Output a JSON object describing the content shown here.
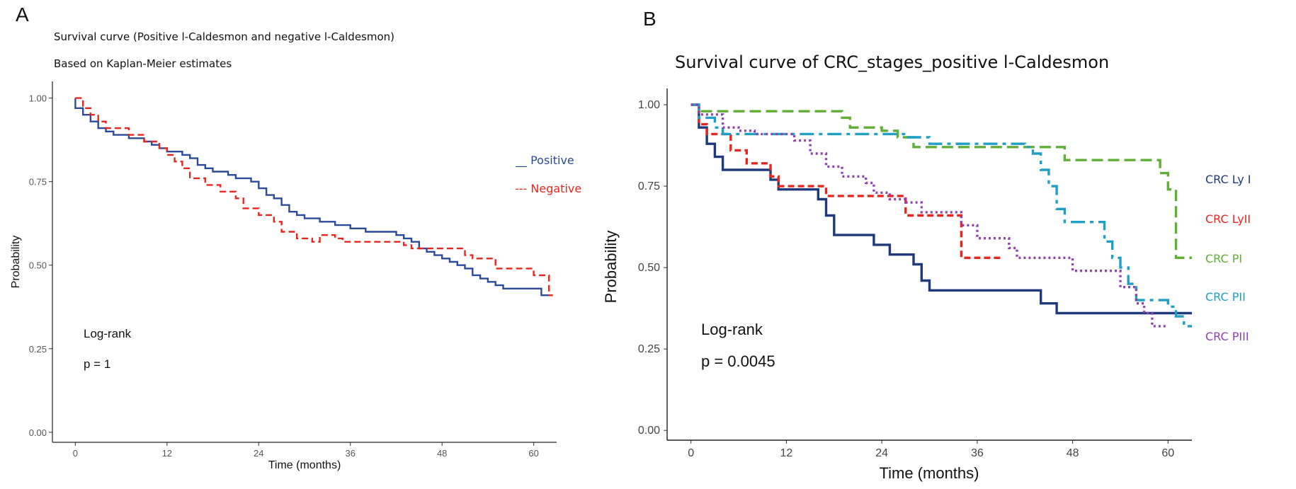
{
  "panels": {
    "a": {
      "letter": "A"
    },
    "b": {
      "letter": "B"
    }
  },
  "chart_data": [
    {
      "type": "line",
      "title": "Survival curve (Positive l-Caldesmon and negative l-Caldesmon)",
      "subtitle": "Based on Kaplan-Meier estimates",
      "xlabel": "Time (months)",
      "ylabel": "Probability",
      "xlim": [
        -3,
        63
      ],
      "ylim": [
        -0.03,
        1.05
      ],
      "xticks": [
        0,
        12,
        24,
        36,
        48,
        60
      ],
      "yticks": [
        0.0,
        0.25,
        0.5,
        0.75,
        1.0
      ],
      "ytick_labels": [
        "0.00",
        "0.25",
        "0.50",
        "0.75",
        "1.00"
      ],
      "grid": false,
      "legend_position": "right",
      "annotations": {
        "test": "Log-rank",
        "pvalue": "p = 1"
      },
      "series": [
        {
          "name": "Positive",
          "legend_label": "__ Positive",
          "color": "#2b4a9a",
          "dash": "solid",
          "steps": [
            [
              0,
              1.0
            ],
            [
              0,
              0.97
            ],
            [
              1,
              0.95
            ],
            [
              2,
              0.93
            ],
            [
              3,
              0.91
            ],
            [
              4,
              0.9
            ],
            [
              5,
              0.89
            ],
            [
              7,
              0.88
            ],
            [
              9,
              0.87
            ],
            [
              10,
              0.86
            ],
            [
              11,
              0.85
            ],
            [
              12,
              0.84
            ],
            [
              14,
              0.83
            ],
            [
              15,
              0.82
            ],
            [
              16,
              0.8
            ],
            [
              17,
              0.79
            ],
            [
              18,
              0.78
            ],
            [
              20,
              0.77
            ],
            [
              21,
              0.76
            ],
            [
              23,
              0.75
            ],
            [
              24,
              0.73
            ],
            [
              25,
              0.71
            ],
            [
              26,
              0.7
            ],
            [
              27,
              0.68
            ],
            [
              28,
              0.66
            ],
            [
              29,
              0.65
            ],
            [
              30,
              0.64
            ],
            [
              32,
              0.63
            ],
            [
              34,
              0.62
            ],
            [
              36,
              0.61
            ],
            [
              38,
              0.6
            ],
            [
              42,
              0.59
            ],
            [
              43,
              0.58
            ],
            [
              44,
              0.57
            ],
            [
              45,
              0.55
            ],
            [
              46,
              0.54
            ],
            [
              47,
              0.53
            ],
            [
              48,
              0.52
            ],
            [
              49,
              0.51
            ],
            [
              50,
              0.5
            ],
            [
              51,
              0.49
            ],
            [
              52,
              0.47
            ],
            [
              53,
              0.46
            ],
            [
              54,
              0.45
            ],
            [
              55,
              0.44
            ],
            [
              56,
              0.43
            ],
            [
              61,
              0.41
            ],
            [
              62.5,
              0.41
            ]
          ]
        },
        {
          "name": "Negative",
          "legend_label": "--- Negative",
          "color": "#e8261f",
          "dash": "dashed",
          "steps": [
            [
              0,
              1.0
            ],
            [
              1,
              0.97
            ],
            [
              2,
              0.95
            ],
            [
              3,
              0.93
            ],
            [
              4,
              0.91
            ],
            [
              7,
              0.89
            ],
            [
              9,
              0.87
            ],
            [
              11,
              0.85
            ],
            [
              12,
              0.83
            ],
            [
              13,
              0.81
            ],
            [
              14,
              0.79
            ],
            [
              15,
              0.76
            ],
            [
              17,
              0.74
            ],
            [
              19,
              0.72
            ],
            [
              21,
              0.7
            ],
            [
              22,
              0.67
            ],
            [
              24,
              0.65
            ],
            [
              26,
              0.63
            ],
            [
              27,
              0.6
            ],
            [
              29,
              0.58
            ],
            [
              31,
              0.57
            ],
            [
              32,
              0.59
            ],
            [
              34,
              0.58
            ],
            [
              35,
              0.57
            ],
            [
              40,
              0.57
            ],
            [
              43,
              0.56
            ],
            [
              44,
              0.55
            ],
            [
              51,
              0.53
            ],
            [
              52,
              0.52
            ],
            [
              55,
              0.49
            ],
            [
              60,
              0.47
            ],
            [
              62,
              0.41
            ],
            [
              62.5,
              0.41
            ]
          ]
        }
      ]
    },
    {
      "type": "line",
      "title": "Survival curve of CRC_stages_positive l-Caldesmon",
      "xlabel": "Time (months)",
      "ylabel": "Probability",
      "xlim": [
        -3,
        63
      ],
      "ylim": [
        -0.03,
        1.05
      ],
      "xticks": [
        0,
        12,
        24,
        36,
        48,
        60
      ],
      "yticks": [
        0.0,
        0.25,
        0.5,
        0.75,
        1.0
      ],
      "ytick_labels": [
        "0.00",
        "0.25",
        "0.50",
        "0.75",
        "1.00"
      ],
      "grid": false,
      "legend_position": "right",
      "annotations": {
        "test": "Log-rank",
        "pvalue": "p = 0.0045"
      },
      "series": [
        {
          "name": "CRC Ly I",
          "color": "#1f3a7a",
          "dash": "solid",
          "steps": [
            [
              0,
              1.0
            ],
            [
              1,
              0.93
            ],
            [
              2,
              0.88
            ],
            [
              3,
              0.84
            ],
            [
              4,
              0.8
            ],
            [
              10,
              0.77
            ],
            [
              11,
              0.74
            ],
            [
              16,
              0.71
            ],
            [
              17,
              0.66
            ],
            [
              18,
              0.6
            ],
            [
              23,
              0.57
            ],
            [
              25,
              0.54
            ],
            [
              28,
              0.51
            ],
            [
              29,
              0.46
            ],
            [
              30,
              0.43
            ],
            [
              44,
              0.39
            ],
            [
              46,
              0.36
            ],
            [
              63,
              0.36
            ]
          ]
        },
        {
          "name": "CRC LyII",
          "color": "#e8261f",
          "dash": "dashed",
          "steps": [
            [
              0,
              1.0
            ],
            [
              1,
              0.94
            ],
            [
              2,
              0.91
            ],
            [
              5,
              0.86
            ],
            [
              7,
              0.82
            ],
            [
              10,
              0.78
            ],
            [
              11,
              0.75
            ],
            [
              17,
              0.72
            ],
            [
              27,
              0.66
            ],
            [
              34,
              0.53
            ],
            [
              39,
              0.53
            ]
          ]
        },
        {
          "name": "CRC PI",
          "color": "#5fae35",
          "dash": "longdash",
          "steps": [
            [
              0,
              1.0
            ],
            [
              1,
              0.98
            ],
            [
              15,
              0.98
            ],
            [
              19,
              0.96
            ],
            [
              20,
              0.93
            ],
            [
              24,
              0.92
            ],
            [
              26,
              0.9
            ],
            [
              28,
              0.87
            ],
            [
              33,
              0.87
            ],
            [
              45,
              0.87
            ],
            [
              47,
              0.83
            ],
            [
              58,
              0.83
            ],
            [
              59,
              0.79
            ],
            [
              60,
              0.74
            ],
            [
              61,
              0.53
            ],
            [
              63,
              0.53
            ]
          ]
        },
        {
          "name": "CRC PII",
          "color": "#1f9fc4",
          "dash": "dashdot",
          "steps": [
            [
              0,
              1.0
            ],
            [
              1,
              0.96
            ],
            [
              3,
              0.93
            ],
            [
              4,
              0.91
            ],
            [
              27,
              0.9
            ],
            [
              30,
              0.88
            ],
            [
              42,
              0.87
            ],
            [
              43,
              0.85
            ],
            [
              44,
              0.8
            ],
            [
              45,
              0.75
            ],
            [
              46,
              0.68
            ],
            [
              47,
              0.64
            ],
            [
              52,
              0.58
            ],
            [
              53,
              0.53
            ],
            [
              54,
              0.5
            ],
            [
              55,
              0.45
            ],
            [
              56,
              0.4
            ],
            [
              60,
              0.38
            ],
            [
              61,
              0.35
            ],
            [
              62,
              0.32
            ],
            [
              63,
              0.32
            ]
          ]
        },
        {
          "name": "CRC PIII",
          "color": "#8e44ad",
          "dash": "dotted",
          "steps": [
            [
              0,
              1.0
            ],
            [
              1,
              0.97
            ],
            [
              4,
              0.93
            ],
            [
              6,
              0.92
            ],
            [
              8,
              0.91
            ],
            [
              13,
              0.89
            ],
            [
              15,
              0.85
            ],
            [
              17,
              0.81
            ],
            [
              19,
              0.78
            ],
            [
              22,
              0.76
            ],
            [
              23,
              0.73
            ],
            [
              25,
              0.71
            ],
            [
              27,
              0.7
            ],
            [
              29,
              0.67
            ],
            [
              34,
              0.63
            ],
            [
              36,
              0.59
            ],
            [
              40,
              0.56
            ],
            [
              41,
              0.53
            ],
            [
              48,
              0.49
            ],
            [
              54,
              0.44
            ],
            [
              56,
              0.39
            ],
            [
              57,
              0.36
            ],
            [
              58,
              0.32
            ],
            [
              60,
              0.32
            ]
          ]
        }
      ]
    }
  ]
}
